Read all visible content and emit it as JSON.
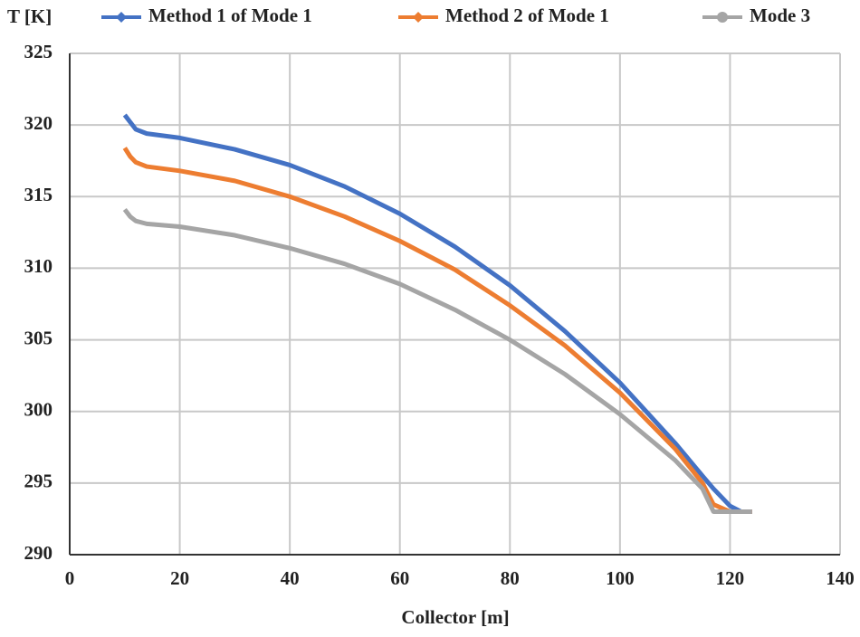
{
  "chart_data": {
    "type": "line",
    "y_label": "T [K]",
    "x_label": "Collector [m]",
    "x": [
      10,
      11,
      12,
      14,
      20,
      30,
      40,
      50,
      60,
      70,
      80,
      90,
      100,
      110,
      115,
      117,
      120,
      122,
      124
    ],
    "series": [
      {
        "name": "Method 1 of Mode 1",
        "color": "#4472c4",
        "marker": "diamond",
        "values": [
          320.7,
          320.2,
          319.7,
          319.4,
          319.1,
          318.3,
          317.2,
          315.7,
          313.8,
          311.5,
          308.8,
          305.6,
          302.0,
          297.8,
          295.5,
          294.6,
          293.4,
          293.0,
          293.0
        ]
      },
      {
        "name": "Method 2 of Mode 1",
        "color": "#ed7d31",
        "marker": "diamond",
        "values": [
          318.4,
          317.8,
          317.4,
          317.1,
          316.8,
          316.1,
          315.0,
          313.6,
          311.9,
          309.9,
          307.4,
          304.6,
          301.3,
          297.4,
          295.0,
          293.5,
          293.0,
          293.0,
          293.0
        ]
      },
      {
        "name": "Mode 3",
        "color": "#a5a5a5",
        "marker": "circle",
        "values": [
          314.1,
          313.6,
          313.3,
          313.1,
          312.9,
          312.3,
          311.4,
          310.3,
          308.9,
          307.1,
          305.0,
          302.6,
          299.8,
          296.6,
          294.6,
          293.0,
          293.0,
          293.0,
          293.0
        ]
      }
    ],
    "xlim": [
      0,
      140
    ],
    "xticks": [
      0,
      20,
      40,
      60,
      80,
      100,
      120,
      140
    ],
    "ylim": [
      290,
      325
    ],
    "yticks": [
      290,
      295,
      300,
      305,
      310,
      315,
      320,
      325
    ],
    "grid": true,
    "legend": "top"
  }
}
